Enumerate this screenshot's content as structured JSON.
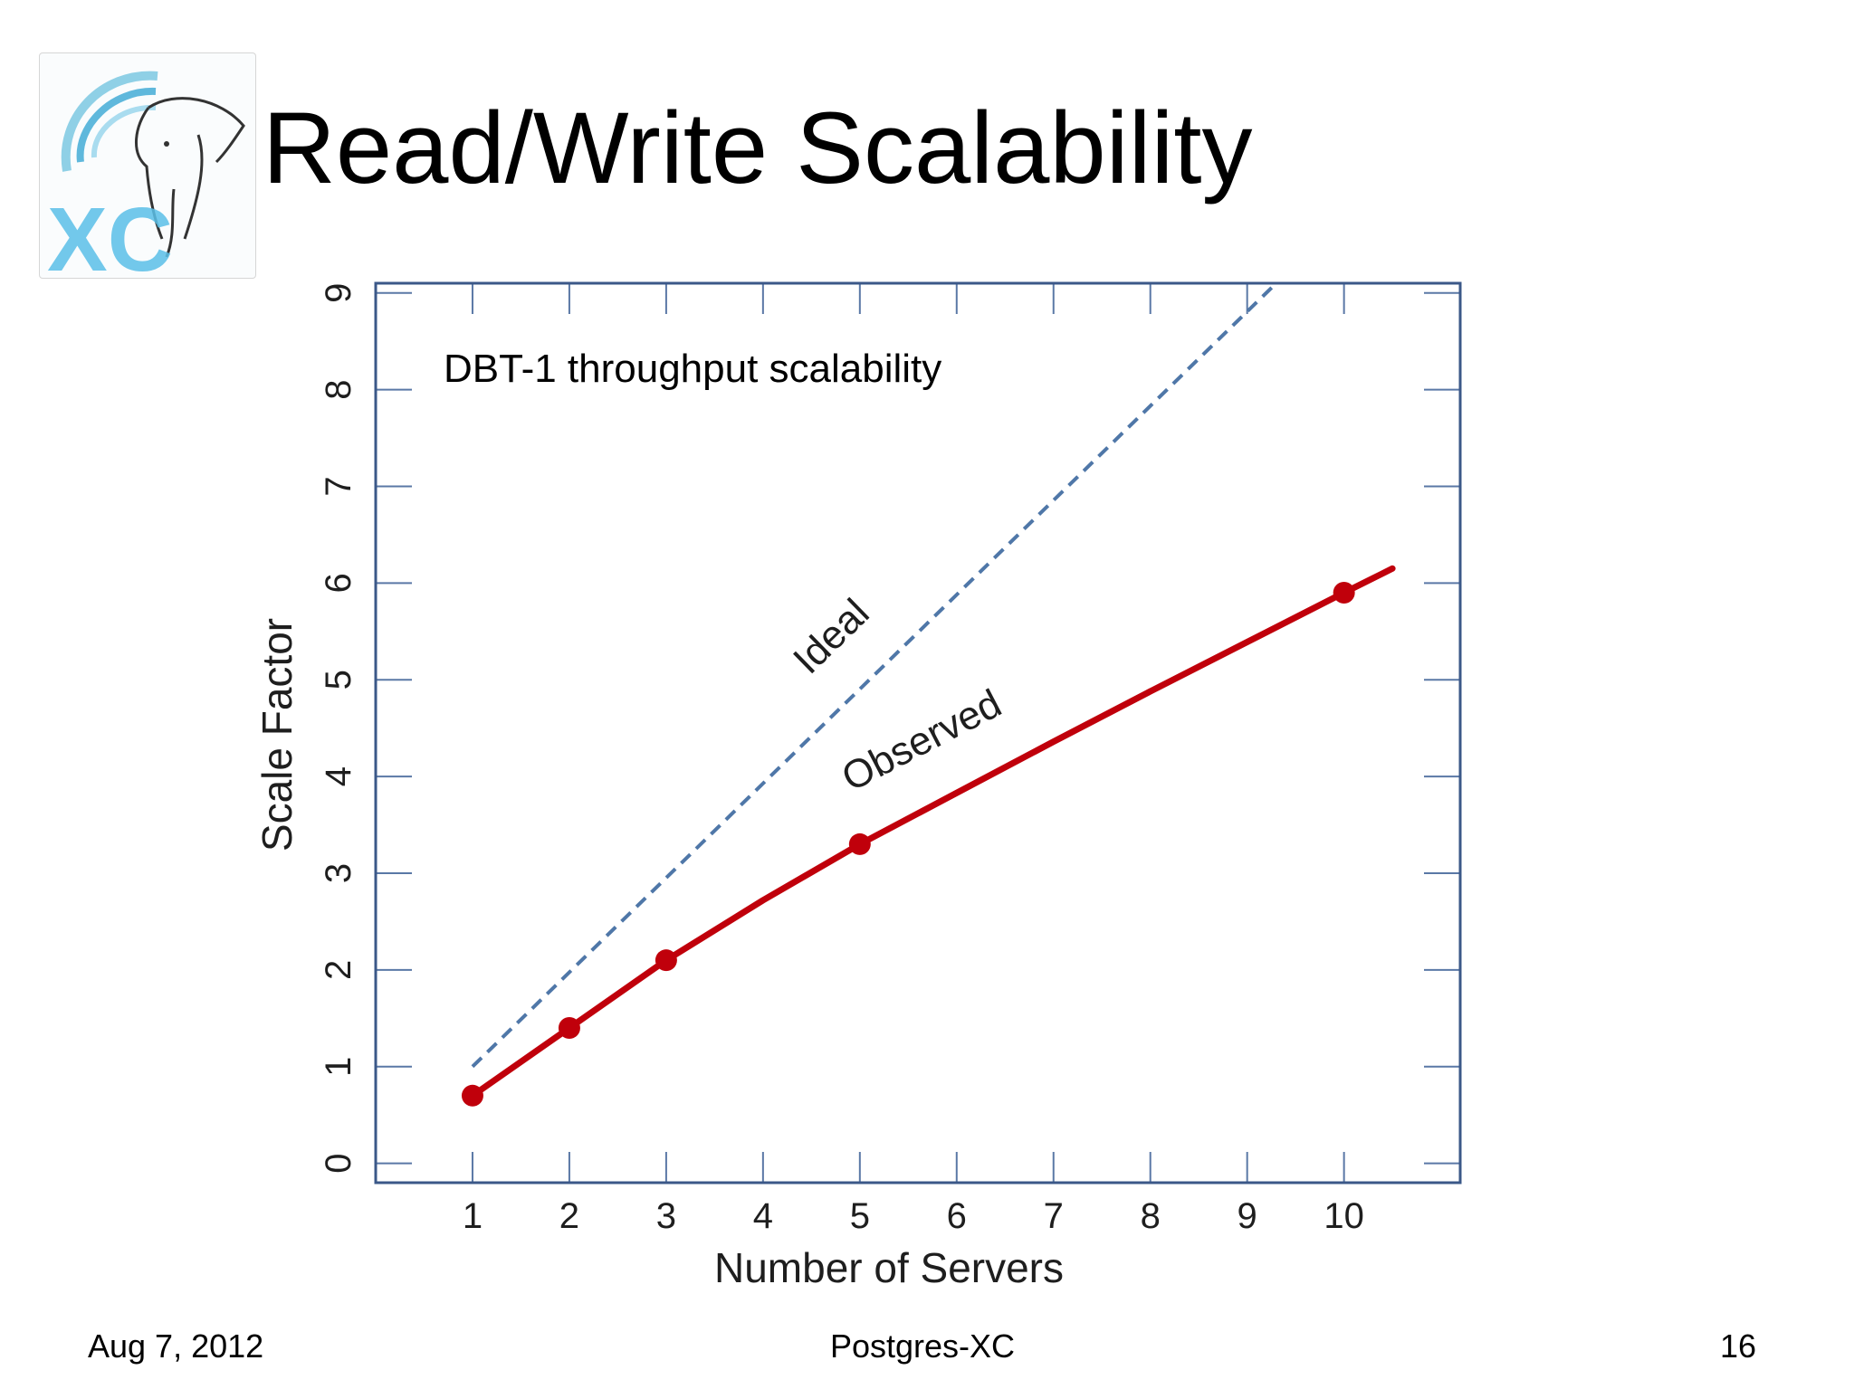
{
  "slide": {
    "title": "Read/Write Scalability",
    "footer_date": "Aug 7, 2012",
    "footer_center": "Postgres-XC",
    "footer_page": "16",
    "logo_text": "XC"
  },
  "chart_data": {
    "type": "line",
    "annotation": "DBT-1 throughput scalability",
    "xlabel": "Number of Servers",
    "ylabel": "Scale Factor",
    "x_ticks": [
      1,
      2,
      3,
      4,
      5,
      6,
      7,
      8,
      9,
      10
    ],
    "y_ticks": [
      0,
      1,
      2,
      3,
      4,
      5,
      6,
      7,
      8,
      9
    ],
    "xlim": [
      0,
      11.2
    ],
    "ylim": [
      -0.2,
      9.1
    ],
    "grid": false,
    "series": [
      {
        "name": "Ideal",
        "style": "dashed",
        "color": "#4f77a8",
        "x": [
          1,
          9.3
        ],
        "y": [
          1,
          9.1
        ]
      },
      {
        "name": "Observed",
        "style": "solid",
        "color": "#c0000b",
        "markers": true,
        "marker_x": [
          1,
          2,
          3,
          5,
          10
        ],
        "marker_y": [
          0.7,
          1.4,
          2.1,
          3.3,
          5.9
        ],
        "x": [
          1,
          2,
          3,
          4,
          5,
          6,
          7,
          8,
          9,
          10,
          10.5
        ],
        "y": [
          0.7,
          1.4,
          2.1,
          2.72,
          3.3,
          3.83,
          4.36,
          4.88,
          5.39,
          5.9,
          6.15
        ]
      }
    ]
  }
}
